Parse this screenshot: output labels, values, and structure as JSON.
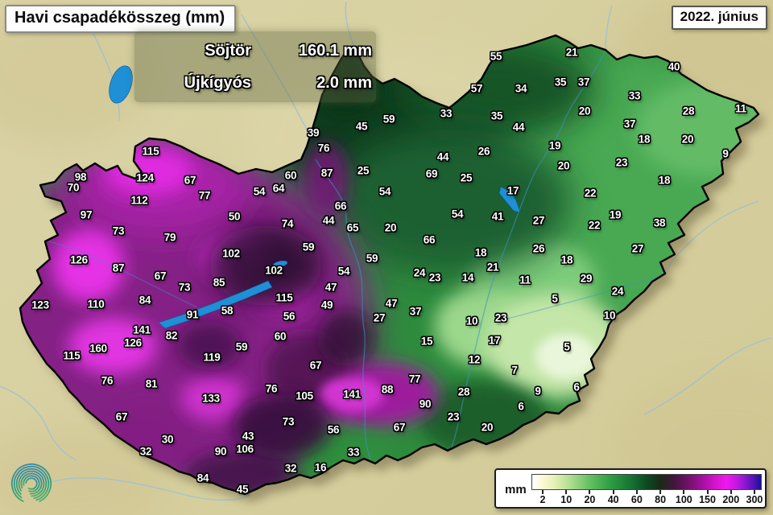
{
  "header": {
    "title": "Havi csapadékösszeg (mm)",
    "date": "2022. június"
  },
  "extremes": {
    "max_station": "Söjtör",
    "max_value": "160.1 mm",
    "min_station": "Újkígyós",
    "min_value": "2.0 mm"
  },
  "legend": {
    "unit": "mm",
    "ticks": [
      "2",
      "10",
      "20",
      "40",
      "60",
      "80",
      "100",
      "150",
      "200",
      "300"
    ],
    "gradient_stops": [
      {
        "c": "#ffffff",
        "p": 0
      },
      {
        "c": "#fbf8d0",
        "p": 5
      },
      {
        "c": "#e3f0b4",
        "p": 10
      },
      {
        "c": "#abdc8c",
        "p": 17
      },
      {
        "c": "#66bf63",
        "p": 25
      },
      {
        "c": "#2f9e44",
        "p": 34
      },
      {
        "c": "#177434",
        "p": 43
      },
      {
        "c": "#0d4a22",
        "p": 50
      },
      {
        "c": "#1c2a16",
        "p": 56
      },
      {
        "c": "#41163c",
        "p": 62
      },
      {
        "c": "#6f1266",
        "p": 68
      },
      {
        "c": "#a10f9c",
        "p": 74
      },
      {
        "c": "#d414cd",
        "p": 80
      },
      {
        "c": "#ee19ee",
        "p": 85
      },
      {
        "c": "#c918e2",
        "p": 89
      },
      {
        "c": "#8d17d2",
        "p": 93
      },
      {
        "c": "#4f13b4",
        "p": 97
      },
      {
        "c": "#1a1292",
        "p": 100
      }
    ]
  },
  "colors": {
    "background_tan": "#d8d1a3",
    "water_blue": "#1f8fd6",
    "country_border": "#000000",
    "label_text": "#ffffff"
  },
  "map": {
    "stations_format": "[value_mm, x_px, y_px]",
    "stations": [
      [
        55,
        616,
        70
      ],
      [
        21,
        710,
        65
      ],
      [
        40,
        837,
        83
      ],
      [
        35,
        696,
        102
      ],
      [
        37,
        725,
        102
      ],
      [
        57,
        592,
        110
      ],
      [
        34,
        647,
        110
      ],
      [
        33,
        788,
        119
      ],
      [
        11,
        920,
        135
      ],
      [
        20,
        726,
        138
      ],
      [
        28,
        855,
        138
      ],
      [
        33,
        554,
        141
      ],
      [
        35,
        617,
        144
      ],
      [
        59,
        483,
        148
      ],
      [
        37,
        782,
        154
      ],
      [
        45,
        449,
        157
      ],
      [
        44,
        644,
        158
      ],
      [
        39,
        389,
        165
      ],
      [
        18,
        800,
        173
      ],
      [
        20,
        854,
        173
      ],
      [
        19,
        689,
        181
      ],
      [
        76,
        402,
        184
      ],
      [
        115,
        187,
        188
      ],
      [
        26,
        601,
        188
      ],
      [
        9,
        901,
        191
      ],
      [
        44,
        550,
        195
      ],
      [
        23,
        772,
        202
      ],
      [
        20,
        700,
        206
      ],
      [
        25,
        451,
        212
      ],
      [
        87,
        406,
        215
      ],
      [
        69,
        536,
        216
      ],
      [
        60,
        361,
        218
      ],
      [
        98,
        100,
        220
      ],
      [
        124,
        180,
        221
      ],
      [
        25,
        579,
        221
      ],
      [
        67,
        236,
        224
      ],
      [
        18,
        825,
        224
      ],
      [
        70,
        91,
        233
      ],
      [
        64,
        346,
        234
      ],
      [
        17,
        637,
        237
      ],
      [
        54,
        322,
        238
      ],
      [
        54,
        478,
        238
      ],
      [
        22,
        733,
        240
      ],
      [
        77,
        254,
        243
      ],
      [
        112,
        173,
        249
      ],
      [
        66,
        423,
        256
      ],
      [
        54,
        568,
        266
      ],
      [
        97,
        107,
        267
      ],
      [
        19,
        764,
        267
      ],
      [
        41,
        618,
        269
      ],
      [
        50,
        291,
        269
      ],
      [
        44,
        408,
        274
      ],
      [
        27,
        669,
        274
      ],
      [
        38,
        819,
        277
      ],
      [
        74,
        357,
        278
      ],
      [
        22,
        738,
        280
      ],
      [
        65,
        438,
        283
      ],
      [
        20,
        485,
        283
      ],
      [
        73,
        147,
        287
      ],
      [
        79,
        211,
        295
      ],
      [
        66,
        533,
        298
      ],
      [
        59,
        383,
        307
      ],
      [
        26,
        669,
        309
      ],
      [
        27,
        792,
        309
      ],
      [
        18,
        597,
        314
      ],
      [
        102,
        287,
        315
      ],
      [
        59,
        462,
        321
      ],
      [
        126,
        98,
        323
      ],
      [
        18,
        704,
        323
      ],
      [
        21,
        612,
        332
      ],
      [
        87,
        147,
        333
      ],
      [
        102,
        340,
        336
      ],
      [
        54,
        427,
        337
      ],
      [
        24,
        521,
        339
      ],
      [
        67,
        199,
        343
      ],
      [
        23,
        540,
        345
      ],
      [
        14,
        581,
        345
      ],
      [
        29,
        728,
        346
      ],
      [
        11,
        652,
        348
      ],
      [
        85,
        272,
        351
      ],
      [
        73,
        229,
        357
      ],
      [
        47,
        411,
        357
      ],
      [
        24,
        767,
        362
      ],
      [
        115,
        353,
        370
      ],
      [
        5,
        689,
        371
      ],
      [
        84,
        180,
        373
      ],
      [
        47,
        486,
        377
      ],
      [
        110,
        119,
        378
      ],
      [
        123,
        50,
        379
      ],
      [
        49,
        406,
        379
      ],
      [
        58,
        282,
        386
      ],
      [
        37,
        516,
        387
      ],
      [
        91,
        239,
        391
      ],
      [
        10,
        757,
        392
      ],
      [
        56,
        359,
        393
      ],
      [
        27,
        471,
        395
      ],
      [
        23,
        622,
        395
      ],
      [
        10,
        586,
        399
      ],
      [
        141,
        176,
        410
      ],
      [
        82,
        213,
        417
      ],
      [
        60,
        348,
        418
      ],
      [
        17,
        614,
        423
      ],
      [
        15,
        530,
        424
      ],
      [
        126,
        165,
        426
      ],
      [
        59,
        300,
        431
      ],
      [
        5,
        704,
        431
      ],
      [
        160,
        122,
        433
      ],
      [
        115,
        89,
        442
      ],
      [
        119,
        263,
        444
      ],
      [
        12,
        589,
        447
      ],
      [
        67,
        392,
        454
      ],
      [
        7,
        639,
        460
      ],
      [
        77,
        515,
        471
      ],
      [
        76,
        133,
        473
      ],
      [
        81,
        188,
        477
      ],
      [
        6,
        716,
        481
      ],
      [
        76,
        337,
        483
      ],
      [
        88,
        481,
        484
      ],
      [
        9,
        668,
        486
      ],
      [
        28,
        576,
        487
      ],
      [
        141,
        437,
        490
      ],
      [
        105,
        378,
        492
      ],
      [
        133,
        262,
        495
      ],
      [
        90,
        528,
        502
      ],
      [
        6,
        647,
        505
      ],
      [
        67,
        151,
        518
      ],
      [
        23,
        563,
        518
      ],
      [
        73,
        358,
        524
      ],
      [
        67,
        496,
        531
      ],
      [
        20,
        605,
        531
      ],
      [
        56,
        414,
        534
      ],
      [
        43,
        308,
        542
      ],
      [
        30,
        208,
        546
      ],
      [
        106,
        304,
        558
      ],
      [
        32,
        181,
        561
      ],
      [
        90,
        274,
        561
      ],
      [
        33,
        439,
        562
      ],
      [
        16,
        398,
        581
      ],
      [
        32,
        361,
        582
      ],
      [
        84,
        252,
        594
      ],
      [
        45,
        301,
        608
      ]
    ],
    "lakes": [
      "lake-balaton",
      "lake-northwest",
      "lake-tisza",
      "lake-velence"
    ]
  }
}
